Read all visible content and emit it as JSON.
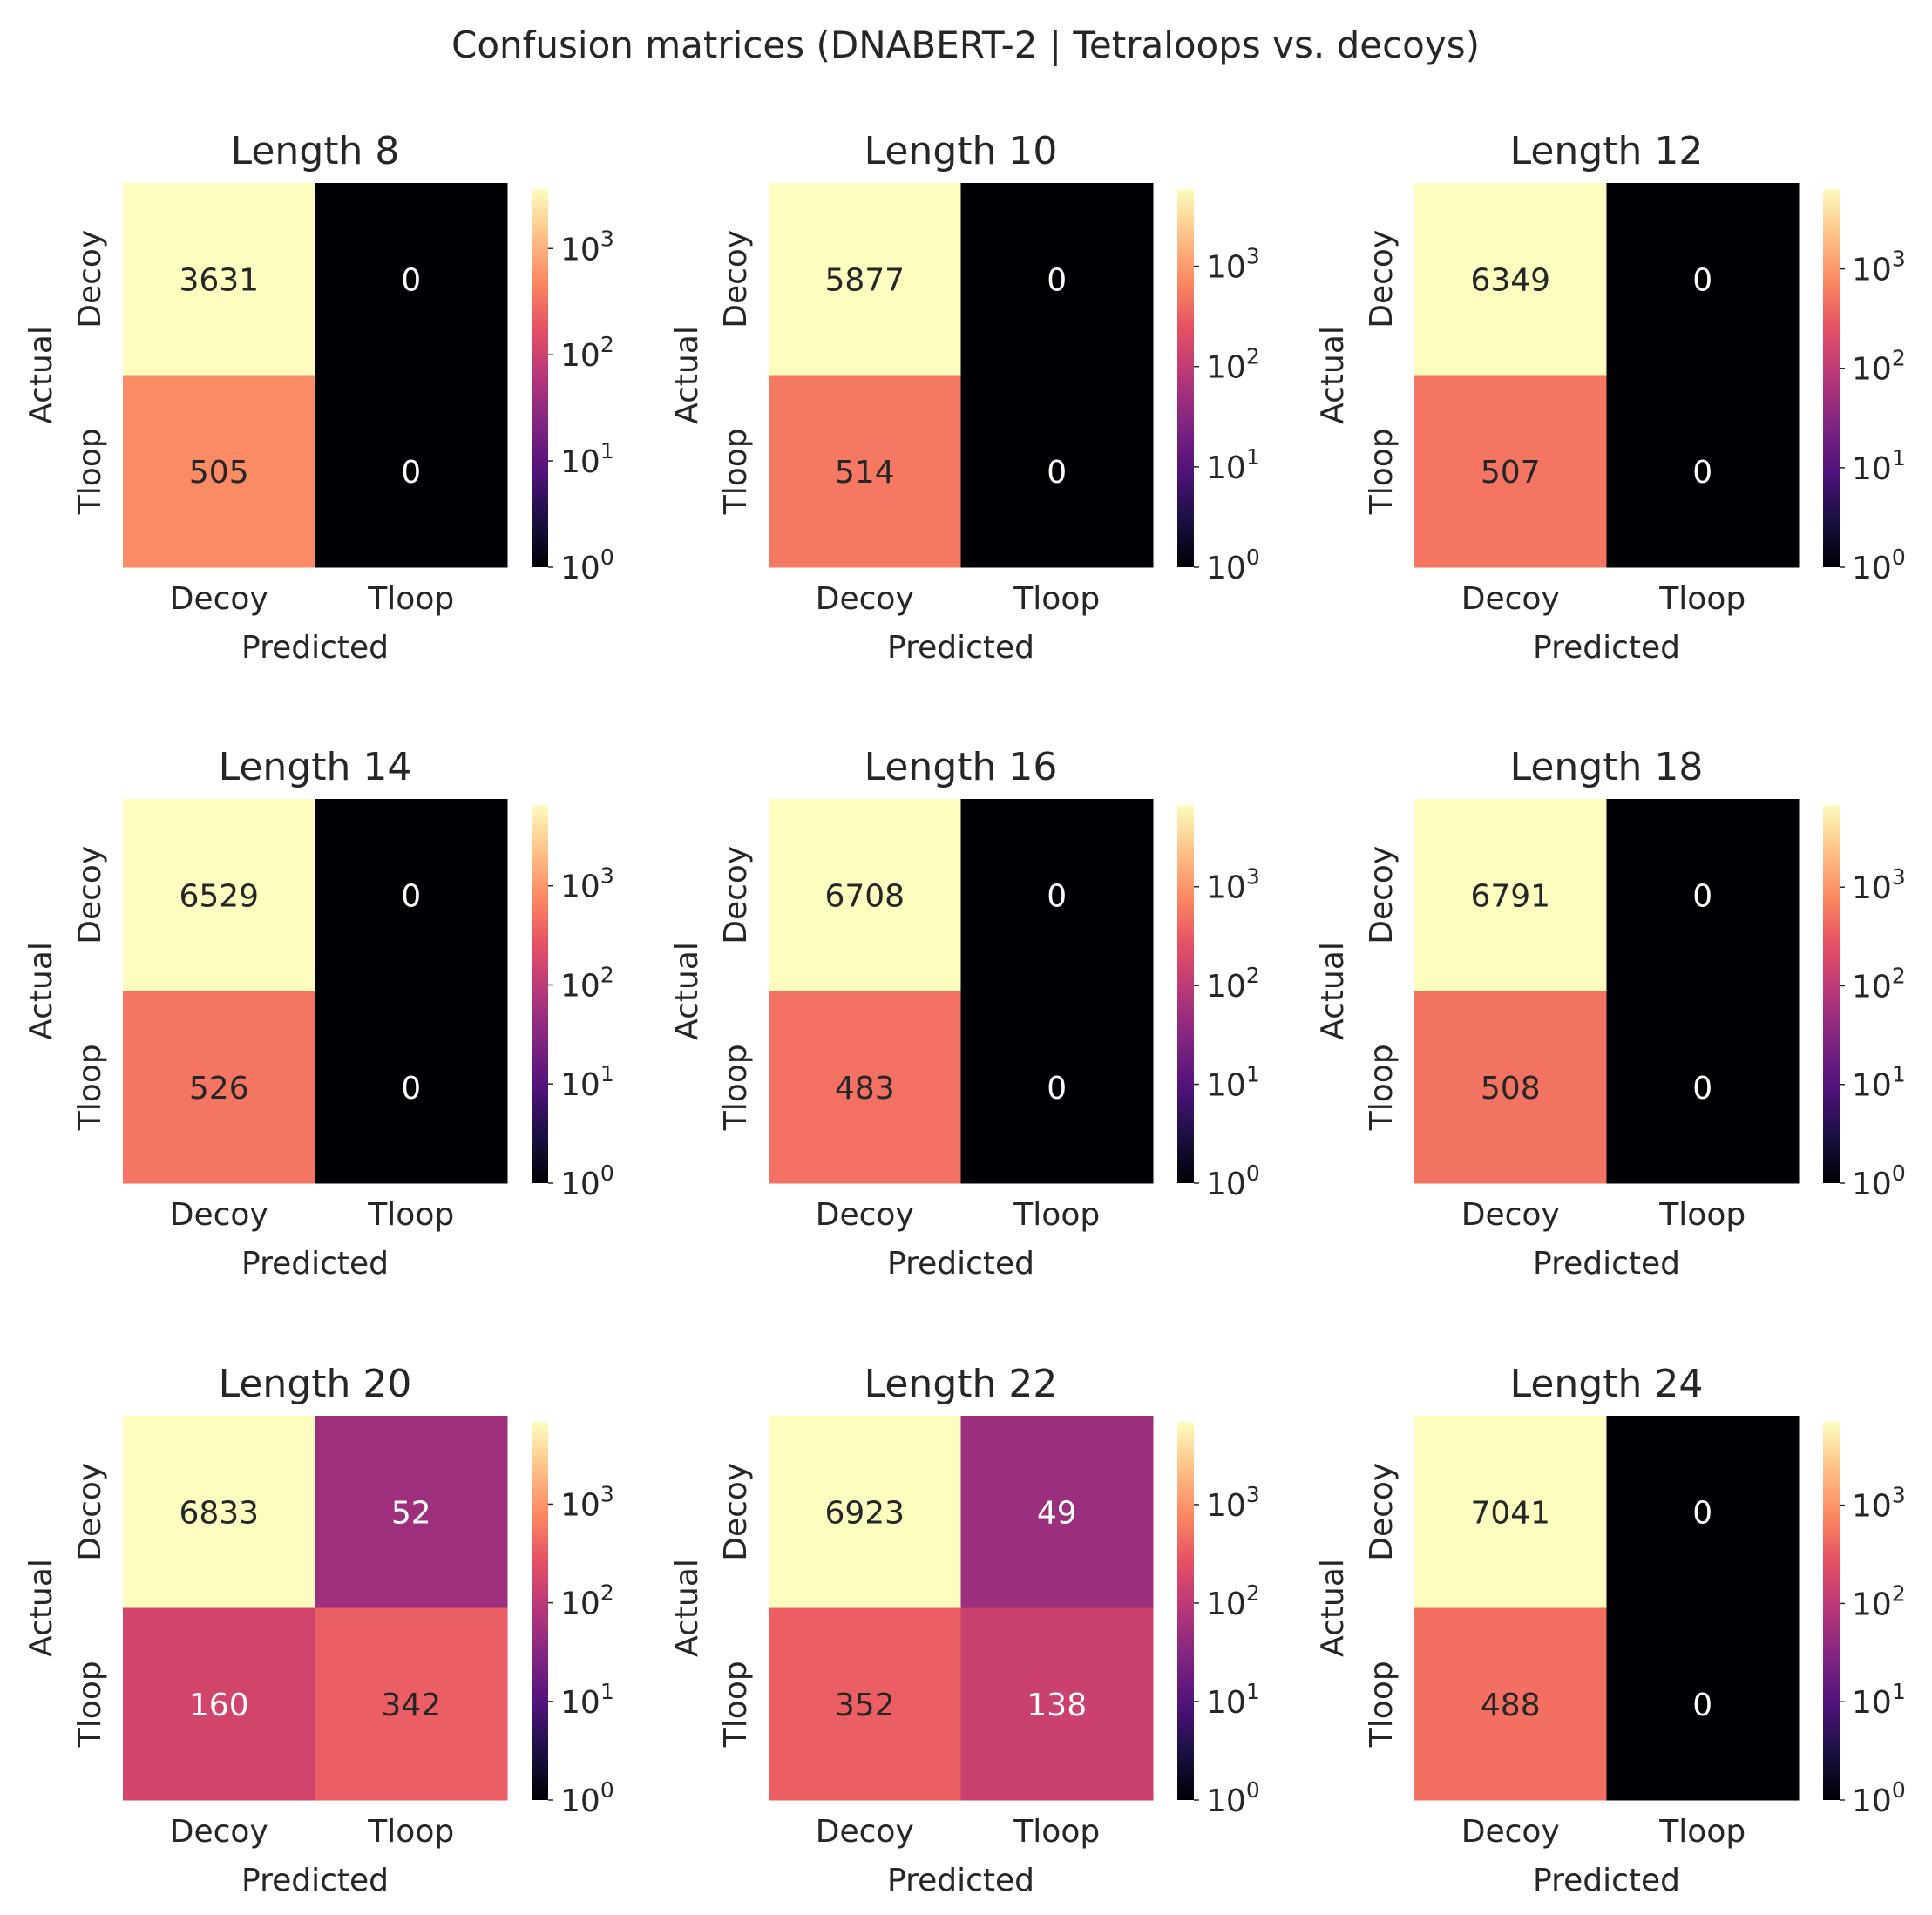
{
  "suptitle": "Confusion matrices (DNABERT-2 | Tetraloops vs. decoys)",
  "chart_data": {
    "type": "heatmap",
    "colormap": "magma",
    "scale": "log",
    "colorbar_ticks": [
      {
        "base": "10",
        "exp": "0",
        "value": 1
      },
      {
        "base": "10",
        "exp": "1",
        "value": 10
      },
      {
        "base": "10",
        "exp": "2",
        "value": 100
      },
      {
        "base": "10",
        "exp": "3",
        "value": 1000
      }
    ],
    "row_labels": [
      "Decoy",
      "Tloop"
    ],
    "col_labels": [
      "Decoy",
      "Tloop"
    ],
    "xlabel": "Predicted",
    "ylabel": "Actual",
    "panels": [
      {
        "title": "Length 8",
        "matrix": [
          [
            3631,
            0
          ],
          [
            505,
            0
          ]
        ]
      },
      {
        "title": "Length 10",
        "matrix": [
          [
            5877,
            0
          ],
          [
            514,
            0
          ]
        ]
      },
      {
        "title": "Length 12",
        "matrix": [
          [
            6349,
            0
          ],
          [
            507,
            0
          ]
        ]
      },
      {
        "title": "Length 14",
        "matrix": [
          [
            6529,
            0
          ],
          [
            526,
            0
          ]
        ]
      },
      {
        "title": "Length 16",
        "matrix": [
          [
            6708,
            0
          ],
          [
            483,
            0
          ]
        ]
      },
      {
        "title": "Length 18",
        "matrix": [
          [
            6791,
            0
          ],
          [
            508,
            0
          ]
        ]
      },
      {
        "title": "Length 20",
        "matrix": [
          [
            6833,
            52
          ],
          [
            160,
            342
          ]
        ]
      },
      {
        "title": "Length 22",
        "matrix": [
          [
            6923,
            49
          ],
          [
            352,
            138
          ]
        ]
      },
      {
        "title": "Length 24",
        "matrix": [
          [
            7041,
            0
          ],
          [
            488,
            0
          ]
        ]
      }
    ]
  }
}
